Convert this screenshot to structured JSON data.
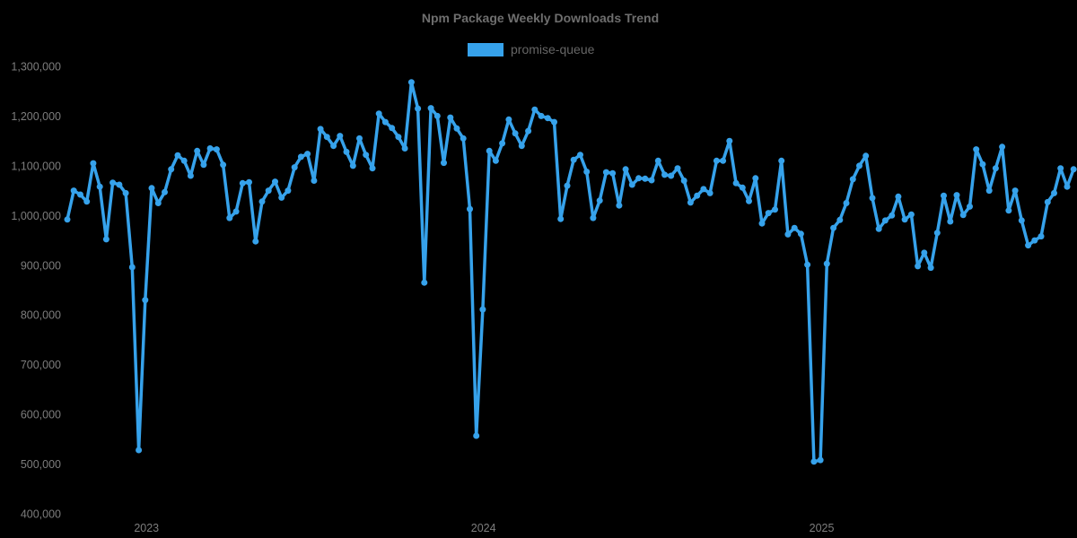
{
  "page": {
    "background_color": "#000000"
  },
  "header": {
    "title": "Npm Package Weekly Downloads Trend"
  },
  "legend": {
    "items": [
      {
        "label": "promise-queue",
        "color": "#36a2eb"
      }
    ]
  },
  "chart_data": {
    "type": "line",
    "title": "Npm Package Weekly Downloads Trend",
    "xlabel": "",
    "ylabel": "",
    "grid": false,
    "legend_position": "top",
    "x_unit": "week",
    "x_tick_labels": [
      "2023",
      "2024",
      "2025"
    ],
    "x_tick_week_index": [
      12.2,
      64.1,
      116.2
    ],
    "y_ticks": [
      400000,
      500000,
      600000,
      700000,
      800000,
      900000,
      1000000,
      1100000,
      1200000,
      1300000
    ],
    "y_tick_labels": [
      "400,000",
      "500,000",
      "600,000",
      "700,000",
      "800,000",
      "900,000",
      "1,000,000",
      "1,100,000",
      "1,200,000",
      "1,300,000"
    ],
    "ylim": [
      400000,
      1300000
    ],
    "marker_radius": 3.5,
    "line_width": 3.5,
    "series": [
      {
        "name": "promise-queue",
        "color": "#36a2eb",
        "values": [
          992000,
          1050000,
          1042000,
          1028000,
          1105000,
          1058000,
          952000,
          1066000,
          1062000,
          1045000,
          896000,
          528000,
          830000,
          1055000,
          1025000,
          1047000,
          1093000,
          1121000,
          1110000,
          1080000,
          1130000,
          1102000,
          1135000,
          1133000,
          1102000,
          995000,
          1008000,
          1065000,
          1067000,
          948000,
          1028000,
          1050000,
          1068000,
          1036000,
          1050000,
          1097000,
          1118000,
          1124000,
          1070000,
          1174000,
          1158000,
          1140000,
          1160000,
          1128000,
          1100000,
          1155000,
          1122000,
          1095000,
          1205000,
          1188000,
          1176000,
          1158000,
          1135000,
          1268000,
          1215000,
          865000,
          1216000,
          1200000,
          1106000,
          1197000,
          1175000,
          1155000,
          1013000,
          557000,
          811000,
          1130000,
          1110000,
          1145000,
          1193000,
          1165000,
          1140000,
          1170000,
          1213000,
          1200000,
          1196000,
          1188000,
          993000,
          1060000,
          1112000,
          1122000,
          1088000,
          995000,
          1030000,
          1087000,
          1085000,
          1020000,
          1093000,
          1062000,
          1075000,
          1074000,
          1071000,
          1110000,
          1082000,
          1080000,
          1095000,
          1070000,
          1026000,
          1040000,
          1053000,
          1045000,
          1110000,
          1110000,
          1150000,
          1065000,
          1056000,
          1029000,
          1075000,
          984000,
          1005000,
          1012000,
          1110000,
          962000,
          975000,
          963000,
          901000,
          505000,
          508000,
          903000,
          975000,
          991000,
          1025000,
          1073000,
          1100000,
          1120000,
          1035000,
          973000,
          990000,
          1000000,
          1038000,
          992000,
          1002000,
          898000,
          925000,
          895000,
          965000,
          1040000,
          988000,
          1041000,
          1001000,
          1018000,
          1133000,
          1103000,
          1050000,
          1095000,
          1138000,
          1010000,
          1050000,
          990000,
          940000,
          950000,
          958000,
          1027000,
          1045000,
          1095000,
          1058000,
          1093000
        ]
      }
    ],
    "text_colors": {
      "title": "#6e6e6e",
      "legend": "#666666",
      "ticks": "#7d7d7d"
    }
  }
}
